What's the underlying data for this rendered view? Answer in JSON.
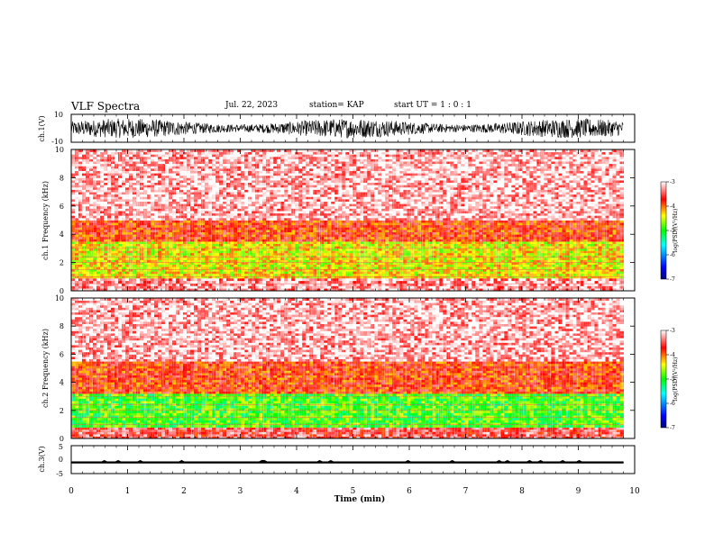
{
  "header": {
    "title": "VLF Spectra",
    "date": "Jul. 22, 2023",
    "station": "station= KAP",
    "start_time": "start UT = 1 : 0 : 1"
  },
  "colors": {
    "colorbar": [
      "#00007f",
      "#0000ff",
      "#00ffff",
      "#00ff00",
      "#ffff00",
      "#ff0000",
      "#ffffff"
    ],
    "waveform": "#000000"
  },
  "chart_data": [
    {
      "type": "line",
      "panel": "ch1-waveform",
      "ylabel": "ch.1(V)",
      "ylim": [
        -10,
        10
      ],
      "yticks": [
        "10",
        "-10"
      ],
      "xlim": [
        0,
        10
      ],
      "description_values": {
        "typical_amplitude_min": -7,
        "typical_amplitude_max": 7
      }
    },
    {
      "type": "heatmap",
      "panel": "ch1-spectrogram",
      "ylabel": "ch.1 Frequency (kHz)",
      "ylim": [
        0,
        10
      ],
      "yticks": [
        "0",
        "2",
        "4",
        "6",
        "8",
        "10"
      ],
      "xlim": [
        0,
        9.8
      ],
      "colorbar": {
        "label": "log(PSD)(V²/Hz)",
        "range": [
          -7,
          -3
        ],
        "ticks": [
          "-3",
          "-4",
          "-5",
          "-6",
          "-7"
        ]
      },
      "bands": [
        {
          "from_khz": 0.0,
          "to_khz": 0.9,
          "log_psd": -3.3
        },
        {
          "from_khz": 0.9,
          "to_khz": 3.5,
          "log_psd": -4.4
        },
        {
          "from_khz": 3.5,
          "to_khz": 5.0,
          "log_psd": -3.8
        },
        {
          "from_khz": 5.0,
          "to_khz": 10.0,
          "log_psd": -3.2
        }
      ]
    },
    {
      "type": "heatmap",
      "panel": "ch2-spectrogram",
      "ylabel": "ch.2 Frequency (kHz)",
      "ylim": [
        0,
        10
      ],
      "yticks": [
        "0",
        "2",
        "4",
        "6",
        "8",
        "10"
      ],
      "xlim": [
        0,
        9.8
      ],
      "colorbar": {
        "label": "log(PSD)(V²/Hz)",
        "range": [
          -7,
          -3
        ],
        "ticks": [
          "-3",
          "-4",
          "-5",
          "-6",
          "-7"
        ]
      },
      "bands": [
        {
          "from_khz": 0.0,
          "to_khz": 0.8,
          "log_psd": -3.5
        },
        {
          "from_khz": 0.8,
          "to_khz": 3.2,
          "log_psd": -4.9
        },
        {
          "from_khz": 3.2,
          "to_khz": 5.5,
          "log_psd": -3.8
        },
        {
          "from_khz": 5.5,
          "to_khz": 10.0,
          "log_psd": -3.2
        }
      ]
    },
    {
      "type": "line",
      "panel": "ch3-waveform",
      "ylabel": "ch.3(V)",
      "ylim": [
        -5,
        5
      ],
      "yticks": [
        "5",
        "0",
        "-5"
      ],
      "xlim": [
        0,
        10
      ],
      "description_values": {
        "level_min": -1.3,
        "level_max": -0.7
      }
    }
  ],
  "xaxis": {
    "label": "Time (min)",
    "ticks": [
      "0",
      "1",
      "2",
      "3",
      "4",
      "5",
      "6",
      "7",
      "8",
      "9",
      "10"
    ],
    "range": [
      0,
      10
    ],
    "data_end_min": 9.8
  }
}
